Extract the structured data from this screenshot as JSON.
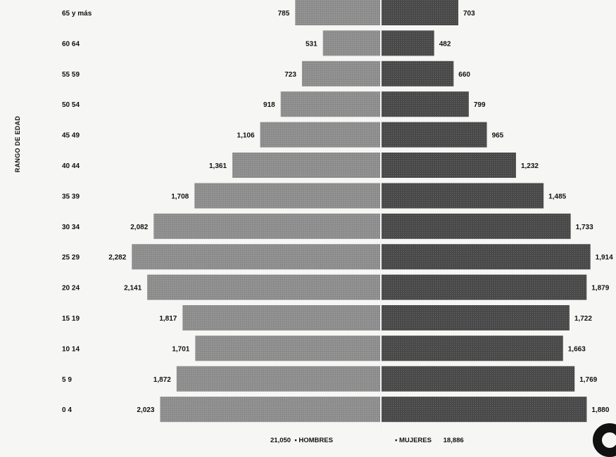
{
  "chart_data": {
    "type": "bar",
    "orientation": "population-pyramid",
    "ylabel": "RANGO DE EDAD",
    "categories": [
      "65 y más",
      "60 64",
      "55 59",
      "50 54",
      "45 49",
      "40 44",
      "35 39",
      "30 34",
      "25 29",
      "20 24",
      "15 19",
      "10 14",
      "5 9",
      "0 4"
    ],
    "series": [
      {
        "name": "HOMBRES",
        "total": "21,050",
        "values": [
          785,
          531,
          723,
          918,
          1106,
          1361,
          1708,
          2082,
          2282,
          2141,
          1817,
          1701,
          1872,
          2023
        ],
        "labels": [
          "785",
          "531",
          "723",
          "918",
          "1,106",
          "1,361",
          "1,708",
          "2,082",
          "2,282",
          "2,141",
          "1,817",
          "1,701",
          "1,872",
          "2,023"
        ],
        "color": "#8e8e8e"
      },
      {
        "name": "MUJERES",
        "total": "18,886",
        "values": [
          703,
          482,
          660,
          799,
          965,
          1232,
          1485,
          1733,
          1914,
          1879,
          1722,
          1663,
          1769,
          1880
        ],
        "labels": [
          "703",
          "482",
          "660",
          "799",
          "965",
          "1,232",
          "1,485",
          "1,733",
          "1,914",
          "1,879",
          "1,722",
          "1,663",
          "1,769",
          "1,880"
        ],
        "color": "#4a4a4a"
      }
    ],
    "legend_position": "bottom",
    "grid": false
  }
}
